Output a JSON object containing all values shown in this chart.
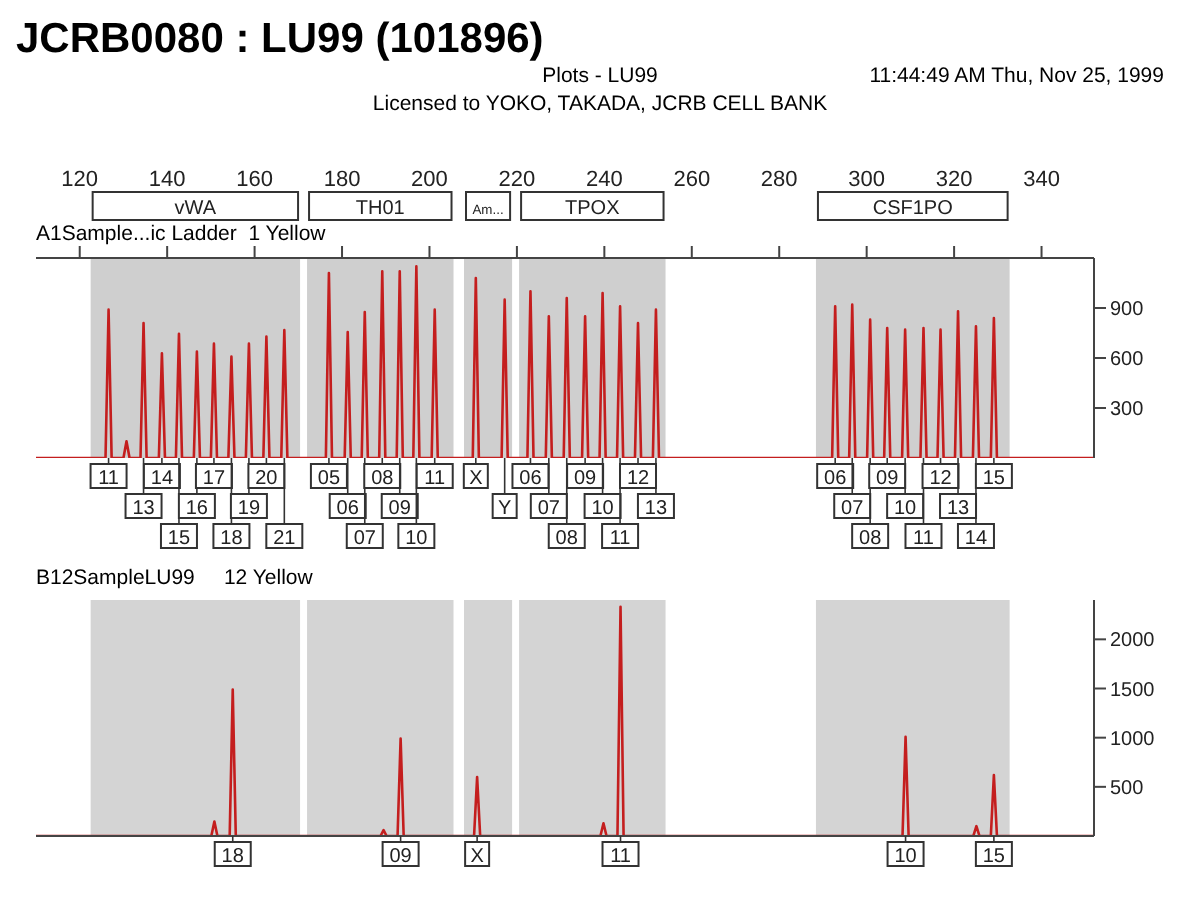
{
  "chart_data": [
    {
      "type": "line",
      "title": "JCRB0080 : LU99 (101896)",
      "subtitle": "A1Sample...ic Ladder  1 Yellow",
      "marker": "none",
      "annotations": [
        "Plots - LU99",
        "11:44:49 AM Thu, Nov 25, 1999",
        "Licensed to YOKO, TAKADA, JCRB CELL BANK",
        {
          "text": "11",
          "x": 126.6,
          "y": 0
        },
        {
          "text": "13",
          "x": 134.6,
          "y": 0
        },
        {
          "text": "14",
          "x": 138.8,
          "y": 0
        },
        {
          "text": "15",
          "x": 142.7,
          "y": 0
        },
        {
          "text": "16",
          "x": 146.8,
          "y": 0
        },
        {
          "text": "17",
          "x": 150.7,
          "y": 0
        },
        {
          "text": "18",
          "x": 154.7,
          "y": 0
        },
        {
          "text": "19",
          "x": 158.7,
          "y": 0
        },
        {
          "text": "20",
          "x": 162.7,
          "y": 0
        },
        {
          "text": "21",
          "x": 166.8,
          "y": 0
        },
        {
          "text": "05",
          "x": 177.0,
          "y": 0
        },
        {
          "text": "06",
          "x": 181.3,
          "y": 0
        },
        {
          "text": "07",
          "x": 185.2,
          "y": 0
        },
        {
          "text": "08",
          "x": 189.2,
          "y": 0
        },
        {
          "text": "09",
          "x": 193.2,
          "y": 0
        },
        {
          "text": "10",
          "x": 197.0,
          "y": 0
        },
        {
          "text": "11",
          "x": 201.2,
          "y": 0
        },
        {
          "text": "X",
          "x": 210.6,
          "y": 0
        },
        {
          "text": "Y",
          "x": 217.2,
          "y": 0
        },
        {
          "text": "06",
          "x": 223.1,
          "y": 0
        },
        {
          "text": "07",
          "x": 227.3,
          "y": 0
        },
        {
          "text": "08",
          "x": 231.4,
          "y": 0
        },
        {
          "text": "09",
          "x": 235.6,
          "y": 0
        },
        {
          "text": "10",
          "x": 239.6,
          "y": 0
        },
        {
          "text": "11",
          "x": 243.6,
          "y": 0
        },
        {
          "text": "12",
          "x": 247.7,
          "y": 0
        },
        {
          "text": "13",
          "x": 251.8,
          "y": 0
        },
        {
          "text": "06",
          "x": 292.8,
          "y": 0
        },
        {
          "text": "07",
          "x": 296.7,
          "y": 0
        },
        {
          "text": "08",
          "x": 300.8,
          "y": 0
        },
        {
          "text": "09",
          "x": 304.7,
          "y": 0
        },
        {
          "text": "10",
          "x": 308.8,
          "y": 0
        },
        {
          "text": "11",
          "x": 313.0,
          "y": 0
        },
        {
          "text": "12",
          "x": 316.9,
          "y": 0
        },
        {
          "text": "13",
          "x": 320.9,
          "y": 0
        },
        {
          "text": "14",
          "x": 325.0,
          "y": 0
        },
        {
          "text": "15",
          "x": 329.1,
          "y": 0
        }
      ],
      "xlim": [
        110,
        352
      ],
      "xticks": [
        120,
        140,
        160,
        180,
        200,
        220,
        240,
        260,
        280,
        300,
        320,
        340
      ],
      "ylim": [
        0,
        1200
      ],
      "yticks": [
        300,
        600,
        900
      ],
      "bands": [
        {
          "axis": "x",
          "from": 122.5,
          "to": 170.4,
          "label": "vWA",
          "color": "#cfcfcf"
        },
        {
          "axis": "x",
          "from": 172.0,
          "to": 205.5,
          "label": "TH01",
          "color": "#cfcfcf"
        },
        {
          "axis": "x",
          "from": 207.9,
          "to": 218.9,
          "label": "Am...",
          "color": "#cfcfcf"
        },
        {
          "axis": "x",
          "from": 220.5,
          "to": 254.0,
          "label": "TPOX",
          "color": "#cfcfcf"
        },
        {
          "axis": "x",
          "from": 288.4,
          "to": 332.7,
          "label": "CSF1PO",
          "color": "#cfcfcf"
        }
      ],
      "series": [
        {
          "type": "line",
          "color": "#c41e1e",
          "x": [
            110,
            125.9,
            126.6,
            127.3,
            130.0,
            130.7,
            131.4,
            133.9,
            134.6,
            135.3,
            138.1,
            138.8,
            139.5,
            142.0,
            142.7,
            143.4,
            146.1,
            146.8,
            147.5,
            150.0,
            150.7,
            151.4,
            154.0,
            154.7,
            155.4,
            158.0,
            158.7,
            159.4,
            162.0,
            162.7,
            163.4,
            166.1,
            166.8,
            167.5,
            176.3,
            177.0,
            177.7,
            180.6,
            181.3,
            182.0,
            184.5,
            185.2,
            185.9,
            188.5,
            189.2,
            189.9,
            192.5,
            193.2,
            193.9,
            196.3,
            197.0,
            197.7,
            200.5,
            201.2,
            201.9,
            209.9,
            210.6,
            211.3,
            216.5,
            217.2,
            217.9,
            222.4,
            223.1,
            223.8,
            226.6,
            227.3,
            228.0,
            230.7,
            231.4,
            232.1,
            234.9,
            235.6,
            236.3,
            238.9,
            239.6,
            240.3,
            242.9,
            243.6,
            244.3,
            247.0,
            247.7,
            248.4,
            251.1,
            251.8,
            252.5,
            292.1,
            292.8,
            293.5,
            296.0,
            296.7,
            297.4,
            300.1,
            300.8,
            301.5,
            304.0,
            304.7,
            305.4,
            308.1,
            308.8,
            309.5,
            312.3,
            313.0,
            313.7,
            316.2,
            316.9,
            317.6,
            320.2,
            320.9,
            321.6,
            324.3,
            325.0,
            325.7,
            328.4,
            329.1,
            329.8,
            352
          ],
          "values": [
            0,
            0,
            890,
            0,
            0,
            100,
            0,
            0,
            810,
            0,
            0,
            628,
            0,
            0,
            745,
            0,
            0,
            639,
            0,
            0,
            686,
            0,
            0,
            609,
            0,
            0,
            686,
            0,
            0,
            729,
            0,
            0,
            767,
            0,
            0,
            1110,
            0,
            0,
            756,
            0,
            0,
            876,
            0,
            0,
            1120,
            0,
            0,
            1120,
            0,
            0,
            1150,
            0,
            0,
            890,
            0,
            0,
            1080,
            0,
            0,
            950,
            0,
            0,
            1000,
            0,
            0,
            850,
            0,
            0,
            960,
            0,
            0,
            850,
            0,
            0,
            990,
            0,
            0,
            910,
            0,
            0,
            810,
            0,
            0,
            890,
            0,
            0,
            910,
            0,
            0,
            920,
            0,
            0,
            830,
            0,
            0,
            780,
            0,
            0,
            770,
            0,
            0,
            780,
            0,
            0,
            770,
            0,
            0,
            880,
            0,
            0,
            790,
            0,
            0,
            840,
            0,
            0
          ]
        }
      ]
    },
    {
      "type": "line",
      "subtitle": "B12SampleLU99     12 Yellow",
      "marker": "none",
      "tick_labels": "y",
      "annotations": [
        {
          "text": "18",
          "x": 155.0,
          "y": 0
        },
        {
          "text": "09",
          "x": 193.4,
          "y": 0
        },
        {
          "text": "X",
          "x": 210.9,
          "y": 0
        },
        {
          "text": "11",
          "x": 243.7,
          "y": 0
        },
        {
          "text": "10",
          "x": 308.9,
          "y": 0
        },
        {
          "text": "15",
          "x": 329.1,
          "y": 0
        }
      ],
      "xlim": [
        110,
        352
      ],
      "ylim": [
        0,
        2400
      ],
      "yticks": [
        500,
        1000,
        1500,
        2000
      ],
      "bands": [
        {
          "axis": "x",
          "from": 122.5,
          "to": 170.4,
          "color": "#d4d4d4"
        },
        {
          "axis": "x",
          "from": 172.0,
          "to": 205.5,
          "color": "#d4d4d4"
        },
        {
          "axis": "x",
          "from": 207.9,
          "to": 218.9,
          "color": "#d4d4d4"
        },
        {
          "axis": "x",
          "from": 220.5,
          "to": 254.0,
          "color": "#d4d4d4"
        },
        {
          "axis": "x",
          "from": 288.4,
          "to": 332.7,
          "color": "#d4d4d4"
        }
      ],
      "series": [
        {
          "type": "line",
          "color": "#c41e1e",
          "x": [
            110,
            150.1,
            150.8,
            151.5,
            154.3,
            155.0,
            155.7,
            188.8,
            189.5,
            190.2,
            192.7,
            193.4,
            194.1,
            210.2,
            210.9,
            211.6,
            239.1,
            239.8,
            240.5,
            243.0,
            243.7,
            244.4,
            308.2,
            308.9,
            309.6,
            324.4,
            325.1,
            325.8,
            328.4,
            329.1,
            329.8,
            352
          ],
          "values": [
            0,
            0,
            146,
            0,
            0,
            1490,
            0,
            0,
            60,
            0,
            0,
            990,
            0,
            0,
            600,
            0,
            0,
            130,
            0,
            0,
            2330,
            0,
            0,
            1010,
            0,
            0,
            100,
            0,
            0,
            620,
            0,
            0
          ]
        }
      ]
    }
  ]
}
